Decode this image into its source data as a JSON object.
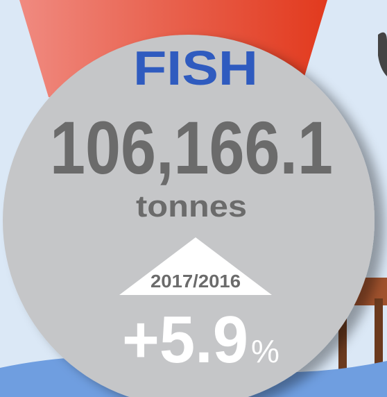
{
  "title": "FISH",
  "value": "106,166.1",
  "unit": "tonnes",
  "period": "2017/2016",
  "change": "+5.9",
  "change_unit": "%"
}
